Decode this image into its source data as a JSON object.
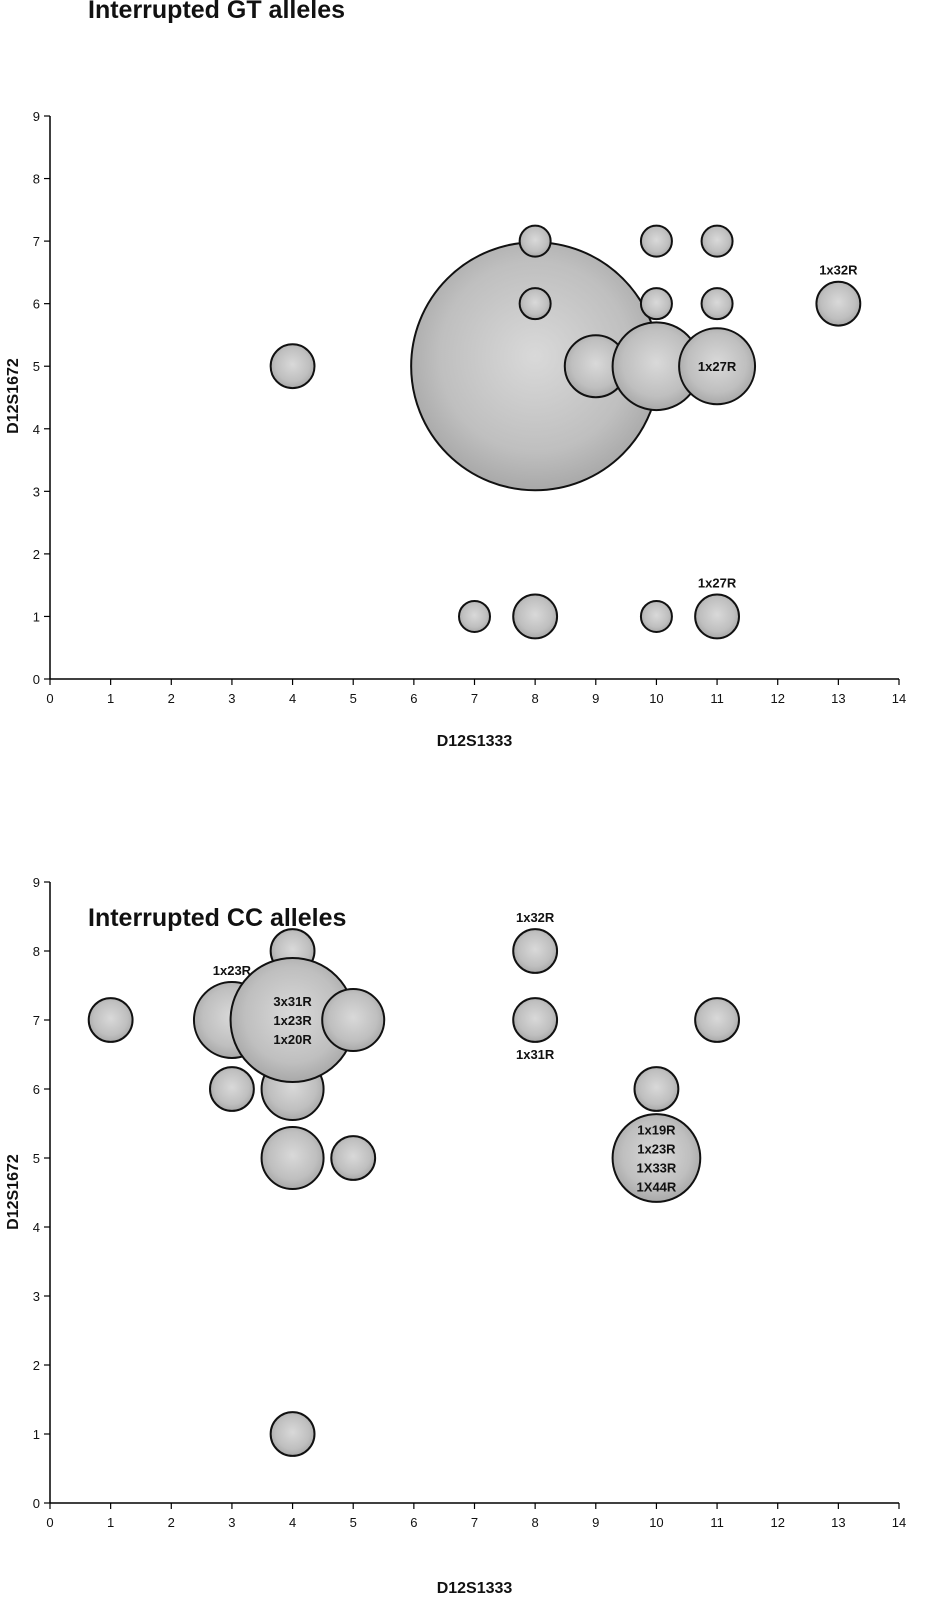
{
  "chart_data": [
    {
      "type": "scatter",
      "title": "Interrupted GT alleles",
      "xlabel": "D12S1333",
      "ylabel": "D12S1672",
      "xlim": [
        0,
        14
      ],
      "ylim": [
        0,
        9
      ],
      "xticks": [
        "0",
        "1",
        "2",
        "3",
        "4",
        "5",
        "6",
        "7",
        "8",
        "9",
        "10",
        "11",
        "12",
        "13",
        "14"
      ],
      "yticks": [
        "0",
        "1",
        "2",
        "3",
        "4",
        "5",
        "6",
        "7",
        "8",
        "9"
      ],
      "grid": false,
      "legend": "none",
      "marker_color": "#b4b4b4",
      "points": [
        {
          "x": 8,
          "y": 5,
          "size": 64,
          "labels": []
        },
        {
          "x": 4,
          "y": 5,
          "size": 2,
          "labels": []
        },
        {
          "x": 8,
          "y": 7,
          "size": 1,
          "labels": []
        },
        {
          "x": 10,
          "y": 7,
          "size": 1,
          "labels": []
        },
        {
          "x": 11,
          "y": 7,
          "size": 1,
          "labels": []
        },
        {
          "x": 8,
          "y": 6,
          "size": 1,
          "labels": []
        },
        {
          "x": 10,
          "y": 6,
          "size": 1,
          "labels": []
        },
        {
          "x": 11,
          "y": 6,
          "size": 1,
          "labels": []
        },
        {
          "x": 13,
          "y": 6,
          "size": 2,
          "labels": [],
          "label_above": "1x32R"
        },
        {
          "x": 9,
          "y": 5,
          "size": 4,
          "labels": []
        },
        {
          "x": 10,
          "y": 5,
          "size": 8,
          "labels": []
        },
        {
          "x": 11,
          "y": 5,
          "size": 6,
          "labels": [
            "1x27R"
          ]
        },
        {
          "x": 7,
          "y": 1,
          "size": 1,
          "labels": []
        },
        {
          "x": 8,
          "y": 1,
          "size": 2,
          "labels": []
        },
        {
          "x": 10,
          "y": 1,
          "size": 1,
          "labels": []
        },
        {
          "x": 11,
          "y": 1,
          "size": 2,
          "labels": [],
          "label_above": "1x27R"
        }
      ]
    },
    {
      "type": "scatter",
      "title": "Interrupted CC alleles",
      "xlabel": "D12S1333",
      "ylabel": "D12S1672",
      "xlim": [
        0,
        14
      ],
      "ylim": [
        0,
        9
      ],
      "xticks": [
        "0",
        "1",
        "2",
        "3",
        "4",
        "5",
        "6",
        "7",
        "8",
        "9",
        "10",
        "11",
        "12",
        "13",
        "14"
      ],
      "yticks": [
        "0",
        "1",
        "2",
        "3",
        "4",
        "5",
        "6",
        "7",
        "8",
        "9"
      ],
      "grid": false,
      "legend": "none",
      "marker_color": "#b4b4b4",
      "points": [
        {
          "x": 1,
          "y": 7,
          "size": 2,
          "labels": []
        },
        {
          "x": 3,
          "y": 7,
          "size": 6,
          "labels": [],
          "label_above": "1x23R"
        },
        {
          "x": 3,
          "y": 6,
          "size": 2,
          "labels": []
        },
        {
          "x": 4,
          "y": 6,
          "size": 4,
          "labels": []
        },
        {
          "x": 4,
          "y": 5,
          "size": 4,
          "labels": []
        },
        {
          "x": 4,
          "y": 8,
          "size": 2,
          "labels": []
        },
        {
          "x": 4,
          "y": 7,
          "size": 16,
          "labels": [
            "3x31R",
            "1x23R",
            "1x20R"
          ]
        },
        {
          "x": 5,
          "y": 7,
          "size": 4,
          "labels": []
        },
        {
          "x": 5,
          "y": 5,
          "size": 2,
          "labels": []
        },
        {
          "x": 4,
          "y": 1,
          "size": 2,
          "labels": []
        },
        {
          "x": 8,
          "y": 8,
          "size": 2,
          "labels": [],
          "label_above": "1x32R"
        },
        {
          "x": 8,
          "y": 7,
          "size": 2,
          "labels": [],
          "label_below": "1x31R"
        },
        {
          "x": 11,
          "y": 7,
          "size": 2,
          "labels": []
        },
        {
          "x": 10,
          "y": 5,
          "size": 8,
          "labels": [
            "1x19R",
            "1x23R",
            "1X33R",
            "1X44R"
          ]
        },
        {
          "x": 10,
          "y": 6,
          "size": 2,
          "labels": []
        }
      ]
    }
  ]
}
